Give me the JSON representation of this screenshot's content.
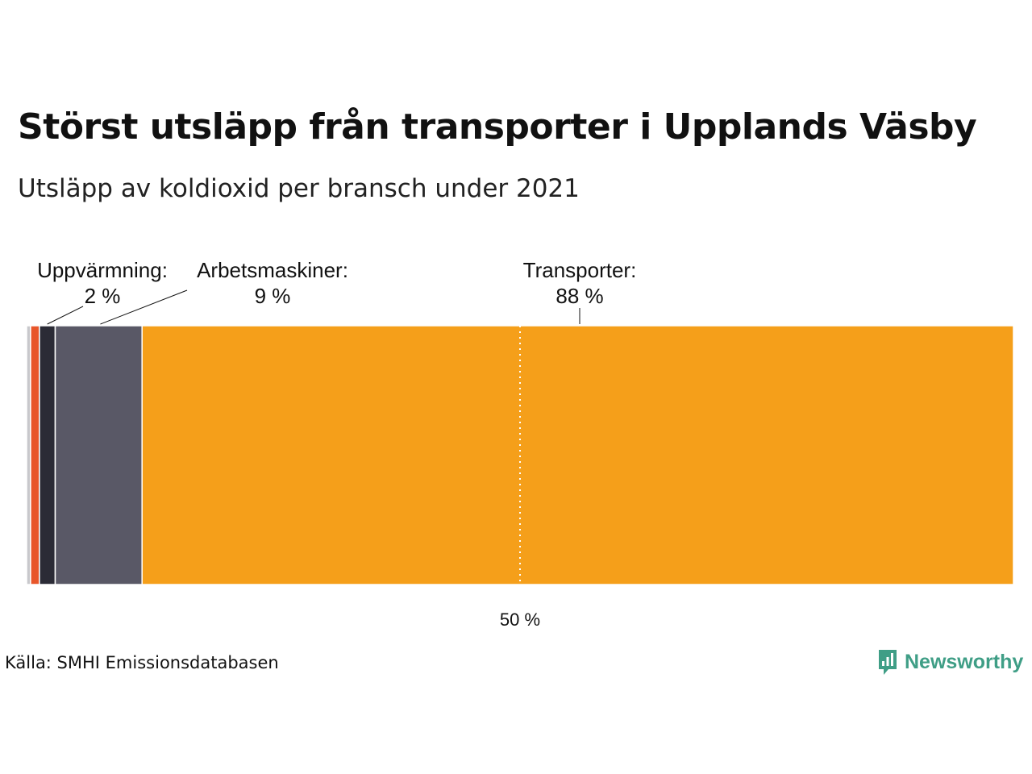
{
  "title": "Störst utsläpp från transporter i Upplands Väsby",
  "subtitle": "Utsläpp av koldioxid per bransch under 2021",
  "source": "Källa: SMHI Emissionsdatabasen",
  "brand": {
    "name": "Newsworthy",
    "color": "#3f9e86"
  },
  "chart_data": {
    "type": "bar",
    "orientation": "horizontal-stacked-100",
    "xlim": [
      0,
      100
    ],
    "reference_line": {
      "value": 50,
      "label": "50 %"
    },
    "segments": [
      {
        "value": 0.4,
        "color": "#c8c8cc"
      },
      {
        "value": 0.9,
        "color": "#e8562a"
      },
      {
        "name": "Uppvärmning",
        "display": "2 %",
        "value": 1.6,
        "color": "#2b2b36"
      },
      {
        "name": "Arbetsmaskiner",
        "display": "9 %",
        "value": 8.8,
        "color": "#595866"
      },
      {
        "name": "Transporter",
        "display": "88 %",
        "value": 88.3,
        "color": "#f59f1a"
      }
    ]
  }
}
